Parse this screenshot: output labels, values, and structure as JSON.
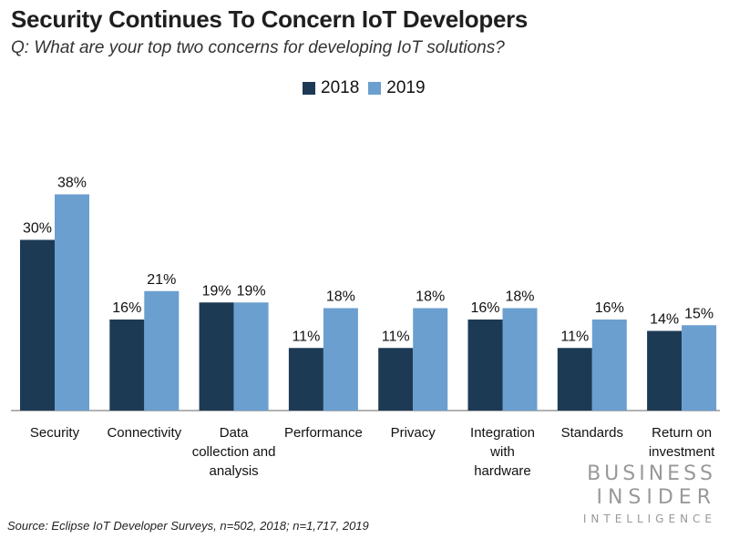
{
  "chart_data": {
    "type": "bar",
    "title": "Security Continues To Concern IoT Developers",
    "subtitle": "Q: What are your top two concerns for developing IoT solutions?",
    "categories": [
      [
        "Security"
      ],
      [
        "Connectivity"
      ],
      [
        "Data",
        "collection and",
        "analysis"
      ],
      [
        "Performance"
      ],
      [
        "Privacy"
      ],
      [
        "Integration",
        "with",
        "hardware"
      ],
      [
        "Standards"
      ],
      [
        "Return on",
        "investment"
      ]
    ],
    "series": [
      {
        "name": "2018",
        "values": [
          30,
          16,
          19,
          11,
          11,
          16,
          11,
          14
        ],
        "color": "#1d3a55"
      },
      {
        "name": "2019",
        "values": [
          38,
          21,
          19,
          18,
          18,
          18,
          16,
          15
        ],
        "color": "#6a9fcf"
      }
    ],
    "value_suffix": "%",
    "ylim": [
      0,
      40
    ],
    "legend_position": "top-center",
    "grid": false
  },
  "source": "Source: Eclipse IoT Developer Surveys, n=502, 2018; n=1,717, 2019",
  "logo": {
    "line1": "BUSINESS",
    "line2": "INSIDER",
    "line3": "INTELLIGENCE"
  }
}
